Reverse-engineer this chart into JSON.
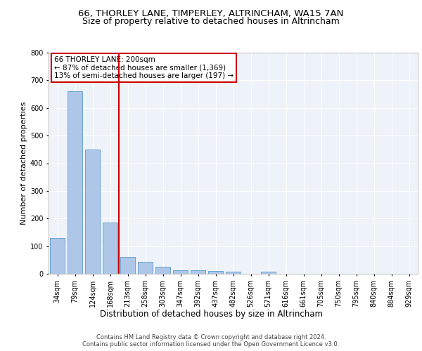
{
  "title1": "66, THORLEY LANE, TIMPERLEY, ALTRINCHAM, WA15 7AN",
  "title2": "Size of property relative to detached houses in Altrincham",
  "xlabel": "Distribution of detached houses by size in Altrincham",
  "ylabel": "Number of detached properties",
  "categories": [
    "34sqm",
    "79sqm",
    "124sqm",
    "168sqm",
    "213sqm",
    "258sqm",
    "303sqm",
    "347sqm",
    "392sqm",
    "437sqm",
    "482sqm",
    "526sqm",
    "571sqm",
    "616sqm",
    "661sqm",
    "705sqm",
    "750sqm",
    "795sqm",
    "840sqm",
    "884sqm",
    "929sqm"
  ],
  "values": [
    130,
    660,
    450,
    185,
    60,
    43,
    25,
    12,
    13,
    11,
    7,
    0,
    8,
    0,
    0,
    0,
    0,
    0,
    0,
    0,
    0
  ],
  "bar_color": "#aec6e8",
  "bar_edge_color": "#5a9bc9",
  "vline_x_index": 4,
  "vline_color": "#cc0000",
  "annotation_text": "66 THORLEY LANE: 200sqm\n← 87% of detached houses are smaller (1,369)\n13% of semi-detached houses are larger (197) →",
  "annotation_box_color": "#cc0000",
  "ylim": [
    0,
    800
  ],
  "yticks": [
    0,
    100,
    200,
    300,
    400,
    500,
    600,
    700,
    800
  ],
  "footer": "Contains HM Land Registry data © Crown copyright and database right 2024.\nContains public sector information licensed under the Open Government Licence v3.0.",
  "bg_color": "#eef2f9",
  "grid_color": "#ffffff",
  "title1_fontsize": 9.5,
  "title2_fontsize": 9,
  "title1_weight": "normal",
  "ylabel_fontsize": 8,
  "xlabel_fontsize": 8.5,
  "tick_fontsize": 7,
  "footer_fontsize": 6,
  "ann_fontsize": 7.5
}
